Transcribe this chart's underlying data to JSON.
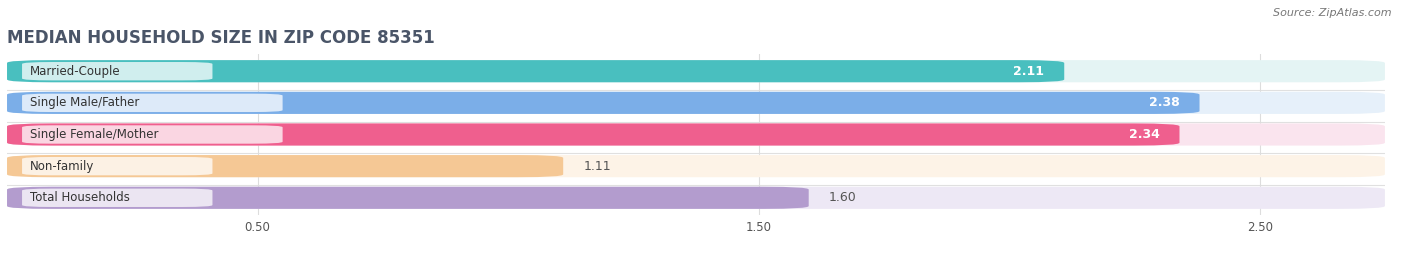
{
  "title": "MEDIAN HOUSEHOLD SIZE IN ZIP CODE 85351",
  "source": "Source: ZipAtlas.com",
  "categories": [
    "Married-Couple",
    "Single Male/Father",
    "Single Female/Mother",
    "Non-family",
    "Total Households"
  ],
  "values": [
    2.11,
    2.38,
    2.34,
    1.11,
    1.6
  ],
  "value_labels": [
    "2.11",
    "2.38",
    "2.34",
    "1.11",
    "1.60"
  ],
  "bar_colors": [
    "#49BFBF",
    "#7BAEE8",
    "#EF5F8E",
    "#F5C895",
    "#B39CCE"
  ],
  "bg_colors": [
    "#E4F4F4",
    "#E6F0FA",
    "#FAE4EE",
    "#FDF3E7",
    "#EDE8F5"
  ],
  "label_bg_colors": [
    "#D0EDED",
    "#C8DCF5",
    "#F5C0D5",
    "#F5DFB8",
    "#D8CCEE"
  ],
  "value_inside": [
    true,
    true,
    true,
    false,
    false
  ],
  "xlim_max": 2.75,
  "xticks": [
    0.5,
    1.5,
    2.5
  ],
  "xtick_labels": [
    "0.50",
    "1.50",
    "2.50"
  ],
  "title_fontsize": 12,
  "label_fontsize": 8.5,
  "value_fontsize": 9,
  "bar_height": 0.7,
  "background_color": "#ffffff",
  "grid_color": "#dddddd",
  "separator_color": "#e0e0e0"
}
